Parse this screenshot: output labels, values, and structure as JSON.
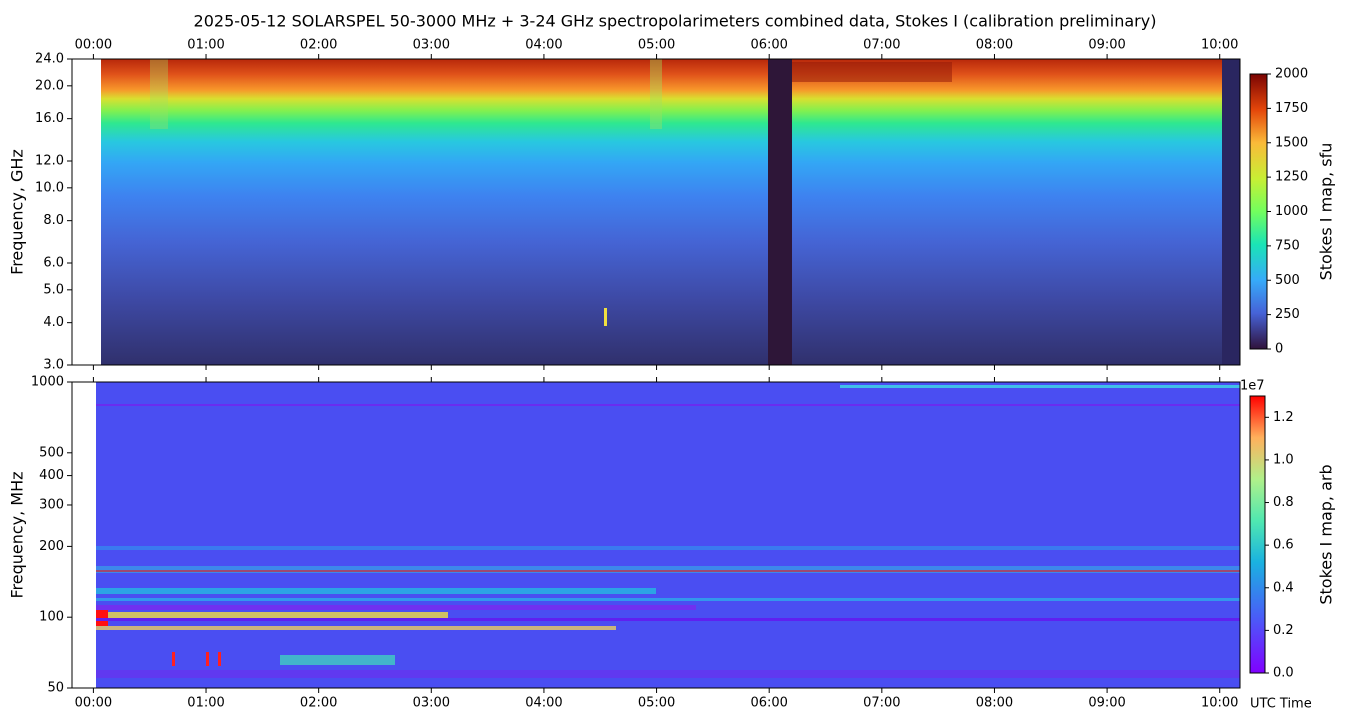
{
  "chart_data": [
    {
      "type": "heatmap",
      "title": "2025-05-12  SOLARSPEL  50-3000 MHz  +  3-24 GHz  spectropolarimeters combined data,  Stokes I  (calibration preliminary)",
      "ylabel": "Frequency, GHz",
      "xlim": [
        -0.19,
        10.18
      ],
      "xticks": [
        {
          "value": 0,
          "label": "00:00"
        },
        {
          "value": 1,
          "label": "01:00"
        },
        {
          "value": 2,
          "label": "02:00"
        },
        {
          "value": 3,
          "label": "03:00"
        },
        {
          "value": 4,
          "label": "04:00"
        },
        {
          "value": 5,
          "label": "05:00"
        },
        {
          "value": 6,
          "label": "06:00"
        },
        {
          "value": 7,
          "label": "07:00"
        },
        {
          "value": 8,
          "label": "08:00"
        },
        {
          "value": 9,
          "label": "09:00"
        },
        {
          "value": 10,
          "label": "10:00"
        }
      ],
      "xtick_side": "top",
      "ylim": [
        3,
        24
      ],
      "ylog": true,
      "yticks": [
        {
          "value": 3,
          "label": "3.0"
        },
        {
          "value": 4,
          "label": "4.0"
        },
        {
          "value": 5,
          "label": "5.0"
        },
        {
          "value": 6,
          "label": "6.0"
        },
        {
          "value": 8,
          "label": "8.0"
        },
        {
          "value": 10,
          "label": "10.0"
        },
        {
          "value": 12,
          "label": "12.0"
        },
        {
          "value": 16,
          "label": "16.0"
        },
        {
          "value": 20,
          "label": "20.0"
        },
        {
          "value": 24,
          "label": "24.0"
        }
      ],
      "colorbar": {
        "label": "Stokes I map, sfu",
        "lim": [
          0,
          2000
        ],
        "ticks": [
          0,
          250,
          500,
          750,
          1000,
          1250,
          1500,
          1750,
          2000
        ]
      }
    },
    {
      "type": "heatmap",
      "ylabel": "Frequency, MHz",
      "xlabel": "UTC Time",
      "xlim": [
        -0.19,
        10.18
      ],
      "xticks": [
        {
          "value": 0,
          "label": "00:00"
        },
        {
          "value": 1,
          "label": "01:00"
        },
        {
          "value": 2,
          "label": "02:00"
        },
        {
          "value": 3,
          "label": "03:00"
        },
        {
          "value": 4,
          "label": "04:00"
        },
        {
          "value": 5,
          "label": "05:00"
        },
        {
          "value": 6,
          "label": "06:00"
        },
        {
          "value": 7,
          "label": "07:00"
        },
        {
          "value": 8,
          "label": "08:00"
        },
        {
          "value": 9,
          "label": "09:00"
        },
        {
          "value": 10,
          "label": "10:00"
        }
      ],
      "xtick_side": "bottom",
      "ylim": [
        50,
        1000
      ],
      "ylog": true,
      "yticks": [
        50,
        100,
        200,
        300,
        400,
        500,
        1000
      ],
      "colorbar": {
        "label": "Stokes I map, arb",
        "offset": "1e7",
        "lim": [
          0,
          1.3
        ],
        "ticks": [
          {
            "value": 0,
            "label": "0.0"
          },
          0.2,
          0.4,
          0.6,
          0.8,
          {
            "value": 1,
            "label": "1.0"
          },
          1.2
        ]
      }
    }
  ]
}
